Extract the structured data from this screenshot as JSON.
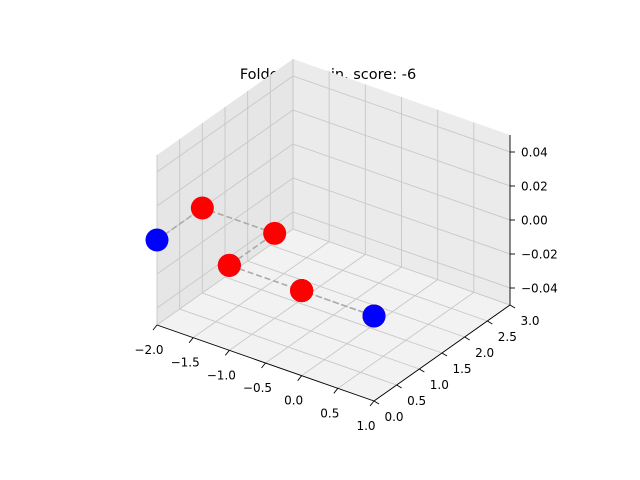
{
  "chart_data": {
    "type": "scatter",
    "title": "Folded protein, score: -6",
    "xlabel": "",
    "ylabel": "",
    "zlabel": "",
    "xlim": [
      -2,
      1
    ],
    "ylim": [
      0,
      3
    ],
    "zlim": [
      -0.05,
      0.05
    ],
    "x_ticks": [
      "−2.0",
      "−1.5",
      "−1.0",
      "−0.5",
      "0.0",
      "0.5",
      "1.0"
    ],
    "y_ticks": [
      "0.0",
      "0.5",
      "1.0",
      "1.5",
      "2.0",
      "2.5",
      "3.0"
    ],
    "z_ticks": [
      "−0.04",
      "−0.02",
      "0.00",
      "0.02",
      "0.04"
    ],
    "grid": true,
    "line_style": "dashed",
    "line_color": "#aaaaaa",
    "colors": {
      "H": "#ff0000",
      "P": "#0000ff"
    },
    "sequence": [
      "P",
      "H",
      "H",
      "P",
      "H",
      "H",
      "H",
      "P",
      "H",
      "H",
      "H",
      "P",
      "H",
      "H"
    ],
    "x": [
      -2,
      -2,
      -1,
      -1,
      -1,
      -1,
      0,
      0,
      0,
      1,
      1,
      1,
      0,
      0
    ],
    "y": [
      0,
      1,
      1,
      0,
      0,
      0,
      0,
      0,
      0,
      0,
      0,
      0,
      0,
      0
    ],
    "z": [
      0,
      0,
      0,
      0,
      0,
      0,
      0,
      0,
      0,
      0,
      0,
      0,
      0,
      0
    ]
  }
}
